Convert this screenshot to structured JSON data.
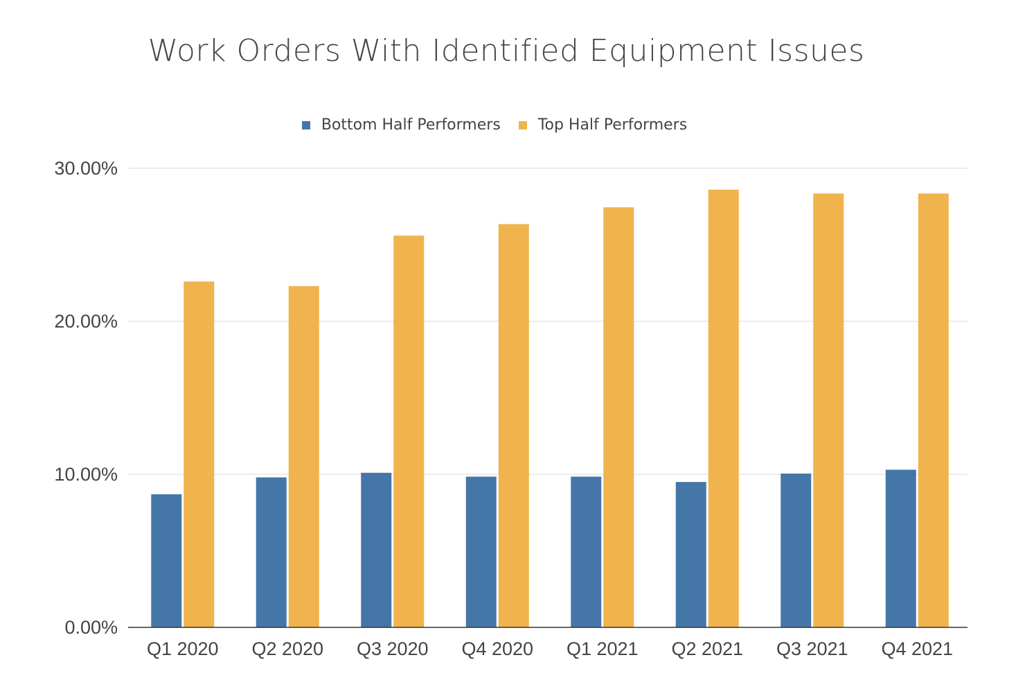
{
  "chart_data": {
    "type": "bar",
    "title": "Work Orders With Identified Equipment Issues",
    "categories": [
      "Q1 2020",
      "Q2 2020",
      "Q3 2020",
      "Q4 2020",
      "Q1 2021",
      "Q2 2021",
      "Q3 2021",
      "Q4 2021"
    ],
    "series": [
      {
        "name": "Bottom Half Performers",
        "color": "#4477a8",
        "values": [
          8.7,
          9.8,
          10.1,
          9.85,
          9.85,
          9.5,
          10.05,
          10.3
        ]
      },
      {
        "name": "Top Half Performers",
        "color": "#f0b34e",
        "values": [
          22.6,
          22.3,
          25.6,
          26.35,
          27.45,
          28.6,
          28.35,
          28.35
        ]
      }
    ],
    "ylim": [
      0,
      30
    ],
    "yticks": [
      0,
      10,
      20,
      30
    ],
    "ytick_labels": [
      "0.00%",
      "10.00%",
      "20.00%",
      "30.00%"
    ],
    "xlabel": "",
    "ylabel": "",
    "grid": true,
    "legend_position": "top"
  }
}
